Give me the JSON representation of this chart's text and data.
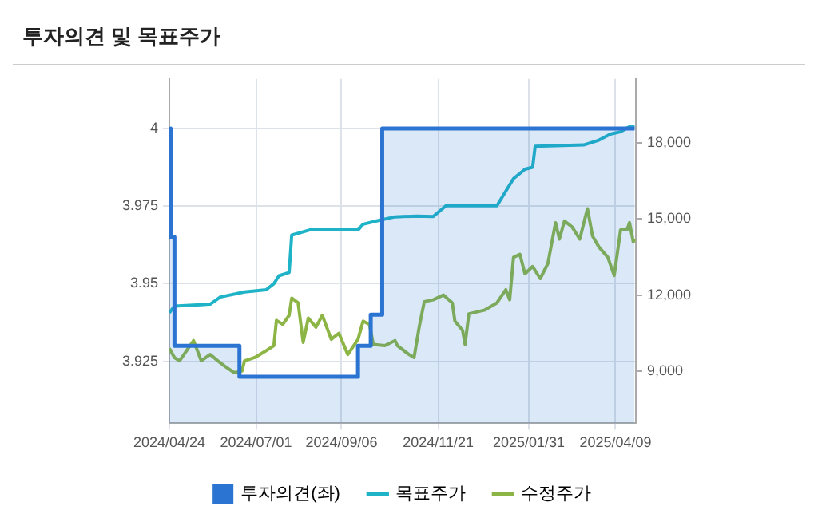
{
  "chart_data": {
    "type": "line",
    "title": "투자의견 및 목표주가",
    "xlim": [
      "2024-04-24",
      "2025-04-25"
    ],
    "xticks": [
      {
        "value": "2024-04-24",
        "label": "2024/04/24"
      },
      {
        "value": "2024-07-01",
        "label": "2024/07/01"
      },
      {
        "value": "2024-09-06",
        "label": "2024/09/06"
      },
      {
        "value": "2024-11-21",
        "label": "2024/11/21"
      },
      {
        "value": "2025-01-31",
        "label": "2025/01/31"
      },
      {
        "value": "2025-04-09",
        "label": "2025/04/09"
      }
    ],
    "ylim": [
      3.905,
      4.016
    ],
    "yticks": [
      3.925,
      3.95,
      3.975,
      4
    ],
    "y2lim": [
      6930,
      20540
    ],
    "y2ticks": [
      {
        "value": 9000,
        "label": "9,000"
      },
      {
        "value": 12000,
        "label": "12,000"
      },
      {
        "value": 15000,
        "label": "15,000"
      },
      {
        "value": 18000,
        "label": "18,000"
      }
    ],
    "grid": true,
    "legend": "bottom",
    "series": [
      {
        "name": "투자의견(좌)",
        "type": "area",
        "axis": "y",
        "color": "#2c74d2",
        "x": [
          "2024-04-24",
          "2024-04-25",
          "2024-04-25",
          "2024-04-28",
          "2024-04-28",
          "2024-06-18",
          "2024-06-18",
          "2024-09-19",
          "2024-09-19",
          "2024-09-29",
          "2024-09-29",
          "2024-10-08",
          "2024-10-08",
          "2025-04-24"
        ],
        "values": [
          4,
          4,
          3.965,
          3.965,
          3.93,
          3.93,
          3.92,
          3.92,
          3.93,
          3.93,
          3.94,
          3.94,
          4,
          4
        ]
      },
      {
        "name": "목표주가",
        "type": "line",
        "axis": "y2",
        "color": "#1fb3c8",
        "x": [
          "2024-04-24",
          "2024-04-28",
          "2024-05-26",
          "2024-06-03",
          "2024-06-22",
          "2024-07-09",
          "2024-07-15",
          "2024-07-19",
          "2024-07-27",
          "2024-07-29",
          "2024-08-12",
          "2024-09-19",
          "2024-09-23",
          "2024-10-03",
          "2024-10-18",
          "2024-11-04",
          "2024-11-17",
          "2024-11-27",
          "2025-01-06",
          "2025-01-19",
          "2025-01-28",
          "2025-02-03",
          "2025-02-05",
          "2025-03-15",
          "2025-03-27",
          "2025-04-05",
          "2025-04-13",
          "2025-04-20",
          "2025-04-24"
        ],
        "values": [
          11300,
          11560,
          11640,
          11920,
          12120,
          12210,
          12450,
          12760,
          12890,
          14370,
          14570,
          14570,
          14800,
          14920,
          15090,
          15120,
          15100,
          15530,
          15530,
          16600,
          16970,
          17050,
          17880,
          17930,
          18120,
          18360,
          18450,
          18650,
          18650
        ]
      },
      {
        "name": "수정주가",
        "type": "line",
        "axis": "y2",
        "color": "#8db545",
        "x": [
          "2024-04-24",
          "2024-04-28",
          "2024-05-02",
          "2024-05-13",
          "2024-05-19",
          "2024-05-26",
          "2024-06-01",
          "2024-06-07",
          "2024-06-14",
          "2024-06-20",
          "2024-06-22",
          "2024-06-30",
          "2024-07-08",
          "2024-07-15",
          "2024-07-17",
          "2024-07-22",
          "2024-07-27",
          "2024-07-29",
          "2024-08-03",
          "2024-08-07",
          "2024-08-11",
          "2024-08-17",
          "2024-08-22",
          "2024-08-29",
          "2024-09-04",
          "2024-09-11",
          "2024-09-19",
          "2024-09-23",
          "2024-09-28",
          "2024-10-01",
          "2024-10-10",
          "2024-10-18",
          "2024-10-20",
          "2024-10-29",
          "2024-11-02",
          "2024-11-06",
          "2024-11-10",
          "2024-11-17",
          "2024-11-25",
          "2024-12-02",
          "2024-12-04",
          "2024-12-10",
          "2024-12-12",
          "2024-12-15",
          "2024-12-27",
          "2025-01-06",
          "2025-01-13",
          "2025-01-16",
          "2025-01-19",
          "2025-01-24",
          "2025-01-28",
          "2025-02-03",
          "2025-02-09",
          "2025-02-15",
          "2025-02-21",
          "2025-02-24",
          "2025-02-28",
          "2025-03-06",
          "2025-03-12",
          "2025-03-18",
          "2025-03-22",
          "2025-03-27",
          "2025-04-03",
          "2025-04-08",
          "2025-04-13",
          "2025-04-18",
          "2025-04-20",
          "2025-04-23",
          "2025-04-24"
        ],
        "values": [
          9890,
          9530,
          9400,
          10200,
          9400,
          9650,
          9400,
          9170,
          8930,
          9000,
          9400,
          9530,
          9770,
          10000,
          11000,
          10840,
          11200,
          11880,
          11690,
          10130,
          11090,
          10730,
          11200,
          10250,
          10490,
          9650,
          10250,
          10970,
          10840,
          10050,
          10000,
          10200,
          10000,
          9650,
          9530,
          10730,
          11740,
          11810,
          12000,
          11690,
          10970,
          10610,
          10050,
          11260,
          11400,
          11690,
          12210,
          11810,
          13490,
          13610,
          12840,
          13130,
          12650,
          13250,
          14860,
          14210,
          14930,
          14690,
          14210,
          15410,
          14330,
          13900,
          13490,
          12770,
          14570,
          14570,
          14860,
          14090,
          14210
        ]
      }
    ]
  }
}
